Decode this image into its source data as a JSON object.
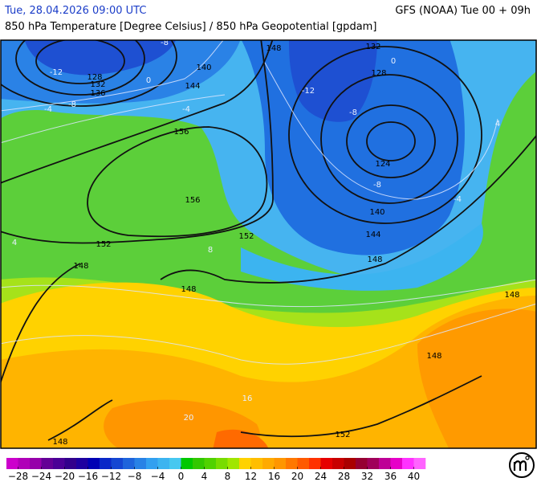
{
  "header": {
    "datetime": "Tue, 28.04.2026 09:00 UTC",
    "model": "GFS (NOAA) Tue 00 + 09h",
    "subtitle": "850 hPa Temperature [Degree Celsius] / 850 hPa Geopotential [gpdam]"
  },
  "map": {
    "geopotential_labels": [
      128,
      132,
      136,
      140,
      144,
      156,
      156,
      152,
      152,
      148,
      148,
      148,
      132,
      128,
      124,
      140,
      144,
      148,
      148,
      148,
      152,
      148
    ],
    "temperature_labels": [
      -12,
      -8,
      -4,
      0,
      -8,
      -4,
      4,
      -12,
      -8,
      0,
      -8,
      -4,
      4,
      16,
      20,
      8
    ]
  },
  "colorbar": {
    "range": [
      -30,
      42
    ],
    "colors": [
      "#cc00cc",
      "#b000b8",
      "#9600aa",
      "#640096",
      "#4b0096",
      "#32008c",
      "#1e00a0",
      "#0000b4",
      "#0a28c8",
      "#1446d2",
      "#1e64dc",
      "#2882e6",
      "#32a0f0",
      "#3cb4f0",
      "#46c8f0",
      "#00c800",
      "#32c800",
      "#50d200",
      "#78dc00",
      "#a0e600",
      "#ffd200",
      "#ffbe00",
      "#ffaa00",
      "#ff9600",
      "#ff7800",
      "#ff5a00",
      "#ff3200",
      "#e60000",
      "#c80000",
      "#aa0000",
      "#960032",
      "#a0005a",
      "#be0096",
      "#e600c8",
      "#ff32ff",
      "#ff64ff"
    ],
    "ticks": [
      {
        "value": -28,
        "label": "−28"
      },
      {
        "value": -24,
        "label": "−24"
      },
      {
        "value": -20,
        "label": "−20"
      },
      {
        "value": -16,
        "label": "−16"
      },
      {
        "value": -12,
        "label": "−12"
      },
      {
        "value": -8,
        "label": "−8"
      },
      {
        "value": -4,
        "label": "−4"
      },
      0,
      4,
      8,
      12,
      16,
      20,
      24,
      28,
      32,
      36,
      40
    ]
  }
}
